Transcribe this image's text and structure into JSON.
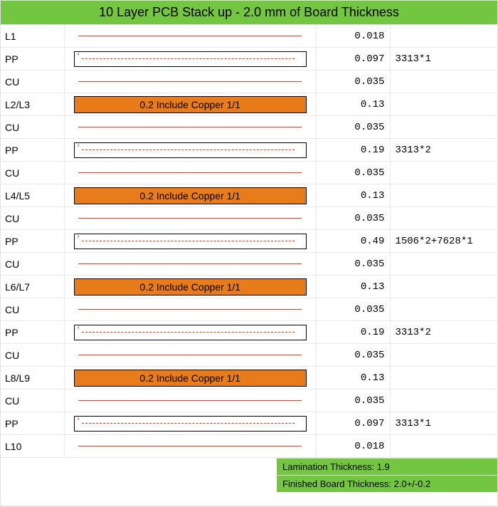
{
  "title": "10 Layer PCB Stack up - 2.0 mm of Board Thickness",
  "colors": {
    "header_bg": "#73c63f",
    "footer_bg": "#73c63f",
    "core_bg": "#e87b1a",
    "copper_line": "#e63a1a",
    "pp_dash": "#e03a1a",
    "grid": "#e8e8e8",
    "text": "#222222"
  },
  "layers": [
    {
      "label": "L1",
      "type": "cu_line",
      "thickness": "0.018",
      "material": ""
    },
    {
      "label": "PP",
      "type": "pp",
      "thickness": "0.097",
      "material": "3313*1"
    },
    {
      "label": "CU",
      "type": "cu_line",
      "thickness": "0.035",
      "material": ""
    },
    {
      "label": "L2/L3",
      "type": "core",
      "thickness": "0.13",
      "material": "",
      "core_text": "0.2 Include Copper 1/1"
    },
    {
      "label": "CU",
      "type": "cu_line",
      "thickness": "0.035",
      "material": ""
    },
    {
      "label": "PP",
      "type": "pp",
      "thickness": "0.19",
      "material": "3313*2"
    },
    {
      "label": "CU",
      "type": "cu_line",
      "thickness": "0.035",
      "material": ""
    },
    {
      "label": "L4/L5",
      "type": "core",
      "thickness": "0.13",
      "material": "",
      "core_text": "0.2 Include Copper 1/1"
    },
    {
      "label": "CU",
      "type": "cu_line",
      "thickness": "0.035",
      "material": ""
    },
    {
      "label": "PP",
      "type": "pp",
      "thickness": "0.49",
      "material": "1506*2+7628*1"
    },
    {
      "label": "CU",
      "type": "cu_line",
      "thickness": "0.035",
      "material": ""
    },
    {
      "label": "L6/L7",
      "type": "core",
      "thickness": "0.13",
      "material": "",
      "core_text": "0.2 Include Copper 1/1"
    },
    {
      "label": "CU",
      "type": "cu_line",
      "thickness": "0.035",
      "material": ""
    },
    {
      "label": "PP",
      "type": "pp",
      "thickness": "0.19",
      "material": "3313*2"
    },
    {
      "label": "CU",
      "type": "cu_line",
      "thickness": "0.035",
      "material": ""
    },
    {
      "label": "L8/L9",
      "type": "core",
      "thickness": "0.13",
      "material": "",
      "core_text": "0.2 Include Copper 1/1"
    },
    {
      "label": "CU",
      "type": "cu_line",
      "thickness": "0.035",
      "material": ""
    },
    {
      "label": "PP",
      "type": "pp",
      "thickness": "0.097",
      "material": "3313*1"
    },
    {
      "label": "L10",
      "type": "cu_line",
      "thickness": "0.018",
      "material": ""
    }
  ],
  "footer": {
    "lamination": "Lamination Thickness: 1.9",
    "finished": "Finished Board Thickness: 2.0+/-0.2"
  }
}
